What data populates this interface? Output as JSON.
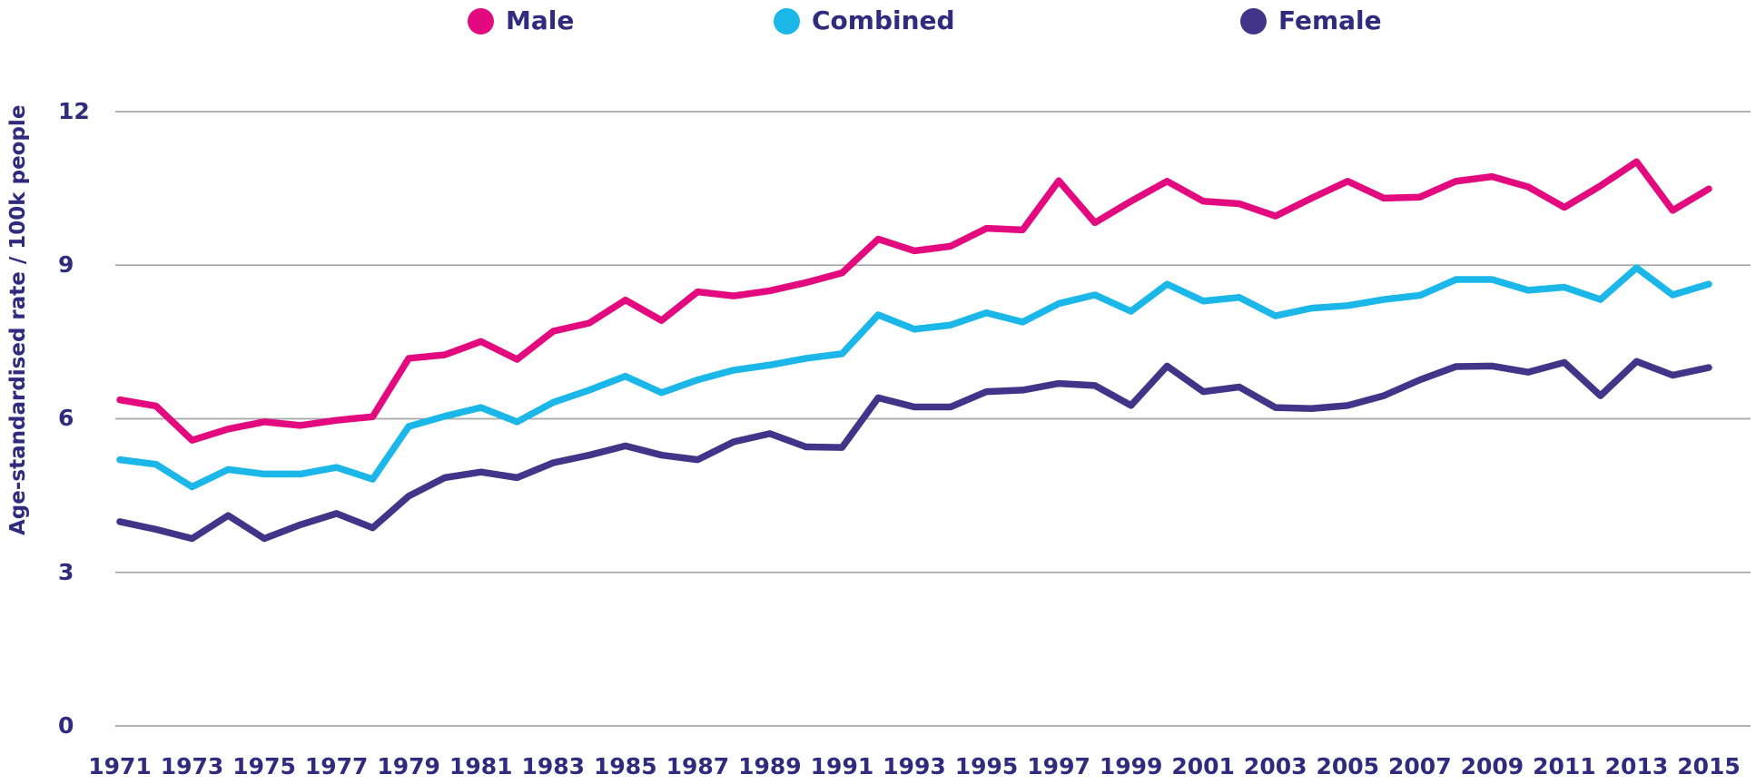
{
  "legend": {
    "items": [
      {
        "label": "Male",
        "color": "#e20a7e"
      },
      {
        "label": "Combined",
        "color": "#1ab7e8"
      },
      {
        "label": "Female",
        "color": "#423589"
      }
    ]
  },
  "y_axis": {
    "title": "Age-standardised rate / 100k people",
    "ticks": [
      12,
      9,
      6,
      3,
      0
    ],
    "range": [
      0,
      12
    ]
  },
  "x_axis": {
    "tick_years": [
      1971,
      1973,
      1975,
      1977,
      1979,
      1981,
      1983,
      1985,
      1987,
      1989,
      1991,
      1993,
      1995,
      1997,
      1999,
      2001,
      2003,
      2005,
      2007,
      2009,
      2011,
      2013,
      2015
    ]
  },
  "colors": {
    "text": "#302b7e",
    "gridline": "#a6a6a6",
    "background": "#ffffff",
    "male": "#e20a7e",
    "combined": "#1ab7e8",
    "female": "#423589"
  },
  "chart_data": {
    "type": "line",
    "title": "",
    "xlabel": "",
    "ylabel": "Age-standardised rate / 100k people",
    "ylim": [
      0,
      12
    ],
    "y_ticks": [
      0,
      3,
      6,
      9,
      12
    ],
    "grid": "horizontal",
    "legend_position": "top",
    "x": [
      1971,
      1972,
      1973,
      1974,
      1975,
      1976,
      1977,
      1978,
      1979,
      1980,
      1981,
      1982,
      1983,
      1984,
      1985,
      1986,
      1987,
      1988,
      1989,
      1990,
      1991,
      1992,
      1993,
      1994,
      1995,
      1996,
      1997,
      1998,
      1999,
      2000,
      2001,
      2002,
      2003,
      2004,
      2005,
      2006,
      2007,
      2008,
      2009,
      2010,
      2011,
      2012,
      2013,
      2014,
      2015
    ],
    "series": [
      {
        "name": "Male",
        "color": "#e20a7e",
        "values": [
          6.37,
          6.25,
          5.58,
          5.8,
          5.94,
          5.87,
          5.97,
          6.04,
          7.18,
          7.25,
          7.51,
          7.16,
          7.71,
          7.87,
          8.32,
          7.92,
          8.48,
          8.4,
          8.5,
          8.66,
          8.85,
          9.51,
          9.28,
          9.37,
          9.72,
          9.69,
          10.65,
          9.83,
          10.25,
          10.64,
          10.25,
          10.2,
          9.96,
          10.31,
          10.64,
          10.31,
          10.33,
          10.64,
          10.73,
          10.53,
          10.13,
          10.55,
          11.02,
          10.07,
          10.49
        ]
      },
      {
        "name": "Combined",
        "color": "#1ab7e8",
        "values": [
          5.2,
          5.11,
          4.67,
          5.01,
          4.92,
          4.92,
          5.05,
          4.82,
          5.85,
          6.05,
          6.22,
          5.94,
          6.32,
          6.56,
          6.83,
          6.51,
          6.76,
          6.95,
          7.05,
          7.18,
          7.27,
          8.03,
          7.75,
          7.83,
          8.07,
          7.89,
          8.25,
          8.42,
          8.1,
          8.63,
          8.3,
          8.37,
          8.01,
          8.16,
          8.21,
          8.33,
          8.41,
          8.72,
          8.72,
          8.51,
          8.57,
          8.33,
          8.95,
          8.42,
          8.63
        ]
      },
      {
        "name": "Female",
        "color": "#423589",
        "values": [
          3.99,
          3.84,
          3.66,
          4.11,
          3.66,
          3.93,
          4.15,
          3.87,
          4.49,
          4.85,
          4.96,
          4.85,
          5.14,
          5.29,
          5.47,
          5.29,
          5.2,
          5.55,
          5.71,
          5.45,
          5.44,
          6.41,
          6.23,
          6.23,
          6.53,
          6.56,
          6.69,
          6.65,
          6.26,
          7.03,
          6.53,
          6.62,
          6.22,
          6.2,
          6.26,
          6.45,
          6.76,
          7.02,
          7.03,
          6.91,
          7.1,
          6.45,
          7.12,
          6.85,
          7.0
        ]
      }
    ]
  }
}
